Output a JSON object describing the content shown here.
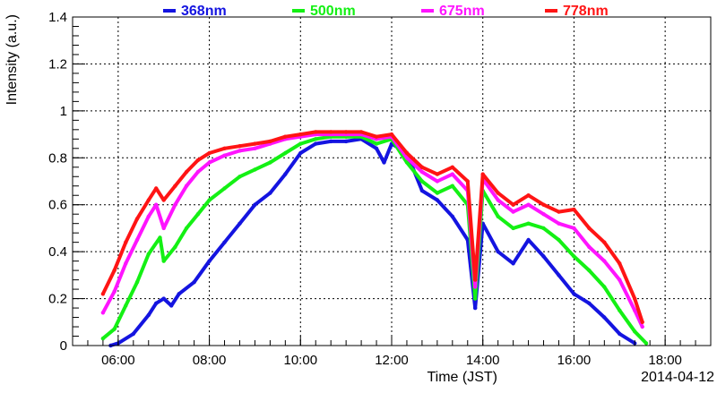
{
  "chart_data": {
    "type": "scatter",
    "xlabel": "Time (JST)",
    "ylabel": "Intensity (a.u.)",
    "date_label": "2014-04-12",
    "xlim": [
      "05:00",
      "19:00"
    ],
    "ylim": [
      0,
      1.4
    ],
    "xticks": [
      "06:00",
      "08:00",
      "10:00",
      "12:00",
      "14:00",
      "16:00",
      "18:00"
    ],
    "yticks": [
      "0",
      "0.2",
      "0.4",
      "0.6",
      "0.8",
      "1",
      "1.2",
      "1.4"
    ],
    "grid": true,
    "legend_position": "top",
    "series": [
      {
        "name": "368nm",
        "color": "#1414e0",
        "points": [
          [
            "05:50",
            0.0
          ],
          [
            "06:00",
            0.01
          ],
          [
            "06:20",
            0.05
          ],
          [
            "06:40",
            0.13
          ],
          [
            "06:50",
            0.18
          ],
          [
            "07:00",
            0.2
          ],
          [
            "07:10",
            0.17
          ],
          [
            "07:20",
            0.22
          ],
          [
            "07:40",
            0.27
          ],
          [
            "08:00",
            0.36
          ],
          [
            "08:20",
            0.44
          ],
          [
            "08:40",
            0.52
          ],
          [
            "09:00",
            0.6
          ],
          [
            "09:20",
            0.65
          ],
          [
            "09:40",
            0.73
          ],
          [
            "10:00",
            0.82
          ],
          [
            "10:20",
            0.86
          ],
          [
            "10:40",
            0.87
          ],
          [
            "11:00",
            0.87
          ],
          [
            "11:20",
            0.88
          ],
          [
            "11:40",
            0.84
          ],
          [
            "11:50",
            0.78
          ],
          [
            "12:00",
            0.86
          ],
          [
            "12:20",
            0.82
          ],
          [
            "12:40",
            0.66
          ],
          [
            "13:00",
            0.62
          ],
          [
            "13:20",
            0.55
          ],
          [
            "13:40",
            0.45
          ],
          [
            "13:50",
            0.16
          ],
          [
            "14:00",
            0.52
          ],
          [
            "14:20",
            0.4
          ],
          [
            "14:40",
            0.35
          ],
          [
            "15:00",
            0.45
          ],
          [
            "15:20",
            0.38
          ],
          [
            "15:40",
            0.3
          ],
          [
            "16:00",
            0.22
          ],
          [
            "16:20",
            0.18
          ],
          [
            "16:40",
            0.12
          ],
          [
            "17:00",
            0.05
          ],
          [
            "17:20",
            0.01
          ]
        ]
      },
      {
        "name": "500nm",
        "color": "#14f014",
        "points": [
          [
            "05:40",
            0.03
          ],
          [
            "05:55",
            0.07
          ],
          [
            "06:10",
            0.17
          ],
          [
            "06:25",
            0.27
          ],
          [
            "06:40",
            0.39
          ],
          [
            "06:55",
            0.46
          ],
          [
            "07:00",
            0.36
          ],
          [
            "07:15",
            0.42
          ],
          [
            "07:30",
            0.5
          ],
          [
            "07:45",
            0.56
          ],
          [
            "08:00",
            0.62
          ],
          [
            "08:20",
            0.67
          ],
          [
            "08:40",
            0.72
          ],
          [
            "09:00",
            0.75
          ],
          [
            "09:20",
            0.78
          ],
          [
            "09:40",
            0.82
          ],
          [
            "10:00",
            0.86
          ],
          [
            "10:20",
            0.88
          ],
          [
            "10:40",
            0.89
          ],
          [
            "11:00",
            0.89
          ],
          [
            "11:20",
            0.89
          ],
          [
            "11:40",
            0.86
          ],
          [
            "12:00",
            0.88
          ],
          [
            "12:20",
            0.78
          ],
          [
            "12:40",
            0.7
          ],
          [
            "13:00",
            0.65
          ],
          [
            "13:20",
            0.68
          ],
          [
            "13:40",
            0.6
          ],
          [
            "13:50",
            0.2
          ],
          [
            "14:00",
            0.66
          ],
          [
            "14:20",
            0.55
          ],
          [
            "14:40",
            0.5
          ],
          [
            "15:00",
            0.52
          ],
          [
            "15:20",
            0.5
          ],
          [
            "15:40",
            0.45
          ],
          [
            "16:00",
            0.38
          ],
          [
            "16:20",
            0.32
          ],
          [
            "16:40",
            0.25
          ],
          [
            "17:00",
            0.15
          ],
          [
            "17:20",
            0.06
          ],
          [
            "17:35",
            0.01
          ]
        ]
      },
      {
        "name": "675nm",
        "color": "#ff14ff",
        "points": [
          [
            "05:40",
            0.14
          ],
          [
            "05:55",
            0.23
          ],
          [
            "06:10",
            0.35
          ],
          [
            "06:25",
            0.45
          ],
          [
            "06:40",
            0.55
          ],
          [
            "06:50",
            0.6
          ],
          [
            "07:00",
            0.5
          ],
          [
            "07:15",
            0.6
          ],
          [
            "07:30",
            0.68
          ],
          [
            "07:45",
            0.74
          ],
          [
            "08:00",
            0.78
          ],
          [
            "08:20",
            0.81
          ],
          [
            "08:40",
            0.83
          ],
          [
            "09:00",
            0.84
          ],
          [
            "09:20",
            0.86
          ],
          [
            "09:40",
            0.88
          ],
          [
            "10:00",
            0.89
          ],
          [
            "10:20",
            0.9
          ],
          [
            "10:40",
            0.9
          ],
          [
            "11:00",
            0.9
          ],
          [
            "11:20",
            0.9
          ],
          [
            "11:40",
            0.88
          ],
          [
            "12:00",
            0.89
          ],
          [
            "12:20",
            0.8
          ],
          [
            "12:40",
            0.74
          ],
          [
            "13:00",
            0.7
          ],
          [
            "13:20",
            0.73
          ],
          [
            "13:40",
            0.66
          ],
          [
            "13:50",
            0.25
          ],
          [
            "14:00",
            0.71
          ],
          [
            "14:20",
            0.62
          ],
          [
            "14:40",
            0.57
          ],
          [
            "15:00",
            0.6
          ],
          [
            "15:20",
            0.56
          ],
          [
            "15:40",
            0.52
          ],
          [
            "16:00",
            0.5
          ],
          [
            "16:20",
            0.42
          ],
          [
            "16:40",
            0.36
          ],
          [
            "17:00",
            0.28
          ],
          [
            "17:20",
            0.15
          ],
          [
            "17:30",
            0.08
          ]
        ]
      },
      {
        "name": "778nm",
        "color": "#ff1414",
        "points": [
          [
            "05:40",
            0.22
          ],
          [
            "05:55",
            0.32
          ],
          [
            "06:10",
            0.44
          ],
          [
            "06:25",
            0.54
          ],
          [
            "06:40",
            0.62
          ],
          [
            "06:50",
            0.67
          ],
          [
            "07:00",
            0.62
          ],
          [
            "07:15",
            0.68
          ],
          [
            "07:30",
            0.74
          ],
          [
            "07:45",
            0.79
          ],
          [
            "08:00",
            0.82
          ],
          [
            "08:20",
            0.84
          ],
          [
            "08:40",
            0.85
          ],
          [
            "09:00",
            0.86
          ],
          [
            "09:20",
            0.87
          ],
          [
            "09:40",
            0.89
          ],
          [
            "10:00",
            0.9
          ],
          [
            "10:20",
            0.91
          ],
          [
            "10:40",
            0.91
          ],
          [
            "11:00",
            0.91
          ],
          [
            "11:20",
            0.91
          ],
          [
            "11:40",
            0.89
          ],
          [
            "12:00",
            0.9
          ],
          [
            "12:20",
            0.82
          ],
          [
            "12:40",
            0.76
          ],
          [
            "13:00",
            0.73
          ],
          [
            "13:20",
            0.76
          ],
          [
            "13:40",
            0.7
          ],
          [
            "13:50",
            0.28
          ],
          [
            "14:00",
            0.73
          ],
          [
            "14:20",
            0.65
          ],
          [
            "14:40",
            0.6
          ],
          [
            "15:00",
            0.64
          ],
          [
            "15:20",
            0.6
          ],
          [
            "15:40",
            0.57
          ],
          [
            "16:00",
            0.58
          ],
          [
            "16:20",
            0.5
          ],
          [
            "16:40",
            0.44
          ],
          [
            "17:00",
            0.35
          ],
          [
            "17:20",
            0.2
          ],
          [
            "17:30",
            0.1
          ]
        ]
      }
    ]
  }
}
